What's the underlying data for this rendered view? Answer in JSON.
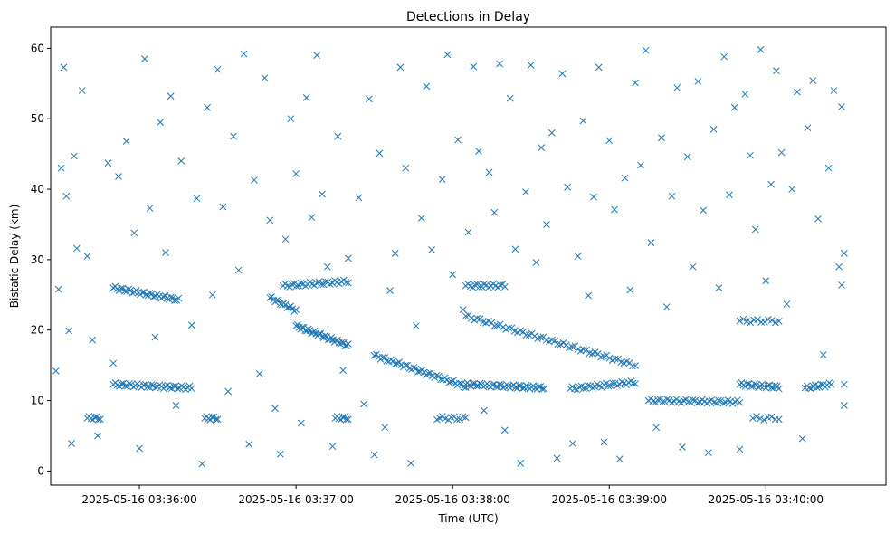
{
  "chart_data": {
    "type": "scatter",
    "title": "Detections in Delay",
    "xlabel": "Time (UTC)",
    "ylabel": "Bistatic Delay (km)",
    "marker": "x",
    "color": "#1f77b4",
    "grid": false,
    "legend": "none",
    "xlim": [
      "2025-05-16 03:35:26",
      "2025-05-16 03:40:46"
    ],
    "ylim": [
      -2,
      63
    ],
    "x_ticks": [
      "2025-05-16 03:36:00",
      "2025-05-16 03:37:00",
      "2025-05-16 03:38:00",
      "2025-05-16 03:39:00",
      "2025-05-16 03:40:00"
    ],
    "y_ticks": [
      0,
      10,
      20,
      30,
      40,
      50,
      60
    ],
    "series": [
      {
        "tracks": [
          {
            "t_start": "2025-05-16 03:35:50",
            "t_end": "2025-05-16 03:36:20",
            "y_start": 12.3,
            "y_end": 11.8,
            "n": 40
          },
          {
            "t_start": "2025-05-16 03:35:50",
            "t_end": "2025-05-16 03:36:15",
            "y_start": 26.0,
            "y_end": 24.3,
            "n": 35
          },
          {
            "t_start": "2025-05-16 03:36:50",
            "t_end": "2025-05-16 03:37:00",
            "y_start": 24.6,
            "y_end": 22.8,
            "n": 16
          },
          {
            "t_start": "2025-05-16 03:37:00",
            "t_end": "2025-05-16 03:37:20",
            "y_start": 20.6,
            "y_end": 17.8,
            "n": 35
          },
          {
            "t_start": "2025-05-16 03:36:55",
            "t_end": "2025-05-16 03:37:20",
            "y_start": 26.3,
            "y_end": 26.9,
            "n": 30
          },
          {
            "t_start": "2025-05-16 03:37:30",
            "t_end": "2025-05-16 03:38:05",
            "y_start": 16.4,
            "y_end": 12.0,
            "n": 45
          },
          {
            "t_start": "2025-05-16 03:38:05",
            "t_end": "2025-05-16 03:38:35",
            "y_start": 12.3,
            "y_end": 11.8,
            "n": 45
          },
          {
            "t_start": "2025-05-16 03:38:05",
            "t_end": "2025-05-16 03:39:10",
            "y_start": 22.0,
            "y_end": 15.0,
            "n": 60
          },
          {
            "t_start": "2025-05-16 03:38:05",
            "t_end": "2025-05-16 03:38:20",
            "y_start": 26.3,
            "y_end": 26.3,
            "n": 18
          },
          {
            "t_start": "2025-05-16 03:38:45",
            "t_end": "2025-05-16 03:39:10",
            "y_start": 11.7,
            "y_end": 12.6,
            "n": 30
          },
          {
            "t_start": "2025-05-16 03:39:15",
            "t_end": "2025-05-16 03:39:50",
            "y_start": 10.0,
            "y_end": 9.8,
            "n": 40
          },
          {
            "t_start": "2025-05-16 03:39:50",
            "t_end": "2025-05-16 03:40:05",
            "y_start": 12.3,
            "y_end": 11.9,
            "n": 22
          },
          {
            "t_start": "2025-05-16 03:39:50",
            "t_end": "2025-05-16 03:40:05",
            "y_start": 21.3,
            "y_end": 21.3,
            "n": 12
          },
          {
            "t_start": "2025-05-16 03:40:15",
            "t_end": "2025-05-16 03:40:25",
            "y_start": 11.8,
            "y_end": 12.3,
            "n": 14
          },
          {
            "t_start": "2025-05-16 03:35:40",
            "t_end": "2025-05-16 03:35:45",
            "y_start": 7.5,
            "y_end": 7.5,
            "n": 8
          },
          {
            "t_start": "2025-05-16 03:36:25",
            "t_end": "2025-05-16 03:36:30",
            "y_start": 7.5,
            "y_end": 7.5,
            "n": 8
          },
          {
            "t_start": "2025-05-16 03:37:15",
            "t_end": "2025-05-16 03:37:20",
            "y_start": 7.5,
            "y_end": 7.5,
            "n": 8
          },
          {
            "t_start": "2025-05-16 03:37:55",
            "t_end": "2025-05-16 03:38:05",
            "y_start": 7.5,
            "y_end": 7.5,
            "n": 10
          },
          {
            "t_start": "2025-05-16 03:39:55",
            "t_end": "2025-05-16 03:40:05",
            "y_start": 7.5,
            "y_end": 7.5,
            "n": 8
          }
        ],
        "scatter_points": [
          [
            "2025-05-16 03:35:28",
            14.2
          ],
          [
            "2025-05-16 03:35:29",
            25.8
          ],
          [
            "2025-05-16 03:35:30",
            43.0
          ],
          [
            "2025-05-16 03:35:31",
            57.3
          ],
          [
            "2025-05-16 03:35:32",
            39.0
          ],
          [
            "2025-05-16 03:35:33",
            19.9
          ],
          [
            "2025-05-16 03:35:34",
            3.9
          ],
          [
            "2025-05-16 03:35:35",
            44.7
          ],
          [
            "2025-05-16 03:35:36",
            31.6
          ],
          [
            "2025-05-16 03:35:38",
            54.0
          ],
          [
            "2025-05-16 03:35:40",
            30.5
          ],
          [
            "2025-05-16 03:35:42",
            18.6
          ],
          [
            "2025-05-16 03:35:44",
            5.0
          ],
          [
            "2025-05-16 03:35:48",
            43.7
          ],
          [
            "2025-05-16 03:35:50",
            15.3
          ],
          [
            "2025-05-16 03:35:52",
            41.8
          ],
          [
            "2025-05-16 03:35:55",
            46.8
          ],
          [
            "2025-05-16 03:35:58",
            33.8
          ],
          [
            "2025-05-16 03:36:00",
            3.2
          ],
          [
            "2025-05-16 03:36:02",
            58.5
          ],
          [
            "2025-05-16 03:36:04",
            37.3
          ],
          [
            "2025-05-16 03:36:06",
            19.0
          ],
          [
            "2025-05-16 03:36:08",
            49.5
          ],
          [
            "2025-05-16 03:36:10",
            31.0
          ],
          [
            "2025-05-16 03:36:12",
            53.2
          ],
          [
            "2025-05-16 03:36:14",
            9.3
          ],
          [
            "2025-05-16 03:36:16",
            44.0
          ],
          [
            "2025-05-16 03:36:20",
            20.7
          ],
          [
            "2025-05-16 03:36:22",
            38.7
          ],
          [
            "2025-05-16 03:36:24",
            1.0
          ],
          [
            "2025-05-16 03:36:26",
            51.6
          ],
          [
            "2025-05-16 03:36:28",
            25.0
          ],
          [
            "2025-05-16 03:36:30",
            57.0
          ],
          [
            "2025-05-16 03:36:32",
            37.5
          ],
          [
            "2025-05-16 03:36:34",
            11.3
          ],
          [
            "2025-05-16 03:36:36",
            47.5
          ],
          [
            "2025-05-16 03:36:38",
            28.5
          ],
          [
            "2025-05-16 03:36:40",
            59.2
          ],
          [
            "2025-05-16 03:36:42",
            3.8
          ],
          [
            "2025-05-16 03:36:44",
            41.3
          ],
          [
            "2025-05-16 03:36:46",
            13.8
          ],
          [
            "2025-05-16 03:36:48",
            55.8
          ],
          [
            "2025-05-16 03:36:50",
            35.6
          ],
          [
            "2025-05-16 03:36:52",
            8.9
          ],
          [
            "2025-05-16 03:36:54",
            2.4
          ],
          [
            "2025-05-16 03:36:56",
            32.9
          ],
          [
            "2025-05-16 03:36:58",
            50.0
          ],
          [
            "2025-05-16 03:37:00",
            42.2
          ],
          [
            "2025-05-16 03:37:02",
            6.8
          ],
          [
            "2025-05-16 03:37:04",
            53.0
          ],
          [
            "2025-05-16 03:37:06",
            36.0
          ],
          [
            "2025-05-16 03:37:08",
            59.0
          ],
          [
            "2025-05-16 03:37:10",
            39.3
          ],
          [
            "2025-05-16 03:37:12",
            29.0
          ],
          [
            "2025-05-16 03:37:14",
            3.5
          ],
          [
            "2025-05-16 03:37:16",
            47.5
          ],
          [
            "2025-05-16 03:37:18",
            14.3
          ],
          [
            "2025-05-16 03:37:20",
            30.2
          ],
          [
            "2025-05-16 03:37:24",
            38.8
          ],
          [
            "2025-05-16 03:37:26",
            9.5
          ],
          [
            "2025-05-16 03:37:28",
            52.8
          ],
          [
            "2025-05-16 03:37:30",
            2.3
          ],
          [
            "2025-05-16 03:37:32",
            45.1
          ],
          [
            "2025-05-16 03:37:34",
            6.2
          ],
          [
            "2025-05-16 03:37:36",
            25.6
          ],
          [
            "2025-05-16 03:37:38",
            30.9
          ],
          [
            "2025-05-16 03:37:40",
            57.3
          ],
          [
            "2025-05-16 03:37:42",
            43.0
          ],
          [
            "2025-05-16 03:37:44",
            1.1
          ],
          [
            "2025-05-16 03:37:46",
            20.6
          ],
          [
            "2025-05-16 03:37:48",
            35.9
          ],
          [
            "2025-05-16 03:37:50",
            54.6
          ],
          [
            "2025-05-16 03:37:52",
            31.4
          ],
          [
            "2025-05-16 03:37:54",
            7.3
          ],
          [
            "2025-05-16 03:37:56",
            41.4
          ],
          [
            "2025-05-16 03:37:58",
            59.1
          ],
          [
            "2025-05-16 03:38:00",
            27.9
          ],
          [
            "2025-05-16 03:38:02",
            47.0
          ],
          [
            "2025-05-16 03:38:04",
            22.9
          ],
          [
            "2025-05-16 03:38:06",
            33.9
          ],
          [
            "2025-05-16 03:38:08",
            57.4
          ],
          [
            "2025-05-16 03:38:10",
            45.4
          ],
          [
            "2025-05-16 03:38:12",
            8.6
          ],
          [
            "2025-05-16 03:38:14",
            42.4
          ],
          [
            "2025-05-16 03:38:16",
            36.7
          ],
          [
            "2025-05-16 03:38:18",
            57.8
          ],
          [
            "2025-05-16 03:38:20",
            5.8
          ],
          [
            "2025-05-16 03:38:22",
            52.9
          ],
          [
            "2025-05-16 03:38:24",
            31.5
          ],
          [
            "2025-05-16 03:38:26",
            1.1
          ],
          [
            "2025-05-16 03:38:28",
            39.6
          ],
          [
            "2025-05-16 03:38:30",
            57.6
          ],
          [
            "2025-05-16 03:38:32",
            29.6
          ],
          [
            "2025-05-16 03:38:34",
            45.9
          ],
          [
            "2025-05-16 03:38:36",
            35.0
          ],
          [
            "2025-05-16 03:38:38",
            48.0
          ],
          [
            "2025-05-16 03:38:40",
            1.8
          ],
          [
            "2025-05-16 03:38:42",
            56.4
          ],
          [
            "2025-05-16 03:38:44",
            40.3
          ],
          [
            "2025-05-16 03:38:46",
            3.9
          ],
          [
            "2025-05-16 03:38:48",
            30.5
          ],
          [
            "2025-05-16 03:38:50",
            49.7
          ],
          [
            "2025-05-16 03:38:52",
            24.9
          ],
          [
            "2025-05-16 03:38:54",
            38.9
          ],
          [
            "2025-05-16 03:38:56",
            57.3
          ],
          [
            "2025-05-16 03:38:58",
            4.1
          ],
          [
            "2025-05-16 03:39:00",
            46.9
          ],
          [
            "2025-05-16 03:39:02",
            37.1
          ],
          [
            "2025-05-16 03:39:04",
            1.7
          ],
          [
            "2025-05-16 03:39:06",
            41.6
          ],
          [
            "2025-05-16 03:39:08",
            25.7
          ],
          [
            "2025-05-16 03:39:10",
            55.1
          ],
          [
            "2025-05-16 03:39:12",
            43.4
          ],
          [
            "2025-05-16 03:39:14",
            59.7
          ],
          [
            "2025-05-16 03:39:16",
            32.4
          ],
          [
            "2025-05-16 03:39:18",
            6.2
          ],
          [
            "2025-05-16 03:39:20",
            47.3
          ],
          [
            "2025-05-16 03:39:22",
            23.3
          ],
          [
            "2025-05-16 03:39:24",
            39.0
          ],
          [
            "2025-05-16 03:39:26",
            54.4
          ],
          [
            "2025-05-16 03:39:28",
            3.4
          ],
          [
            "2025-05-16 03:39:30",
            44.6
          ],
          [
            "2025-05-16 03:39:32",
            29.0
          ],
          [
            "2025-05-16 03:39:34",
            55.3
          ],
          [
            "2025-05-16 03:39:36",
            37.0
          ],
          [
            "2025-05-16 03:39:38",
            2.6
          ],
          [
            "2025-05-16 03:39:40",
            48.5
          ],
          [
            "2025-05-16 03:39:42",
            26.0
          ],
          [
            "2025-05-16 03:39:44",
            58.8
          ],
          [
            "2025-05-16 03:39:46",
            39.2
          ],
          [
            "2025-05-16 03:39:48",
            51.6
          ],
          [
            "2025-05-16 03:39:50",
            3.1
          ],
          [
            "2025-05-16 03:39:52",
            53.5
          ],
          [
            "2025-05-16 03:39:54",
            44.8
          ],
          [
            "2025-05-16 03:39:56",
            34.3
          ],
          [
            "2025-05-16 03:39:58",
            59.8
          ],
          [
            "2025-05-16 03:40:00",
            27.0
          ],
          [
            "2025-05-16 03:40:02",
            40.7
          ],
          [
            "2025-05-16 03:40:04",
            56.8
          ],
          [
            "2025-05-16 03:40:06",
            45.2
          ],
          [
            "2025-05-16 03:40:08",
            23.7
          ],
          [
            "2025-05-16 03:40:10",
            40.0
          ],
          [
            "2025-05-16 03:40:12",
            53.8
          ],
          [
            "2025-05-16 03:40:14",
            4.6
          ],
          [
            "2025-05-16 03:40:16",
            48.7
          ],
          [
            "2025-05-16 03:40:18",
            55.4
          ],
          [
            "2025-05-16 03:40:20",
            35.8
          ],
          [
            "2025-05-16 03:40:22",
            16.5
          ],
          [
            "2025-05-16 03:40:24",
            43.0
          ],
          [
            "2025-05-16 03:40:26",
            54.0
          ],
          [
            "2025-05-16 03:40:28",
            29.0
          ],
          [
            "2025-05-16 03:40:29",
            51.7
          ],
          [
            "2025-05-16 03:40:29",
            26.4
          ],
          [
            "2025-05-16 03:40:30",
            30.9
          ],
          [
            "2025-05-16 03:40:30",
            9.3
          ],
          [
            "2025-05-16 03:40:30",
            12.3
          ]
        ]
      }
    ]
  }
}
